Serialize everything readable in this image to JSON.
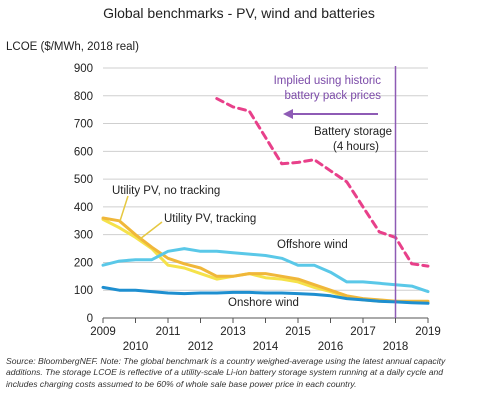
{
  "chart_data": {
    "type": "line",
    "title": "Global benchmarks - PV, wind and batteries",
    "ylabel": "LCOE ($/MWh, 2018 real)",
    "xlabel": "",
    "ylim": [
      0,
      900
    ],
    "xlim": [
      2009,
      2019
    ],
    "yticks": [
      0,
      100,
      200,
      300,
      400,
      500,
      600,
      700,
      800,
      900
    ],
    "xticks_upper": [
      "2009",
      "2011",
      "2013",
      "2015",
      "2017",
      "2019"
    ],
    "xticks_lower": [
      "2010",
      "2012",
      "2014",
      "2016",
      "2018"
    ],
    "grid": true,
    "series": [
      {
        "name": "Battery storage (4 hours)",
        "color": "#e8408a",
        "dash": true,
        "points": [
          [
            2012.5,
            790
          ],
          [
            2013,
            760
          ],
          [
            2013.5,
            745
          ],
          [
            2014,
            650
          ],
          [
            2014.5,
            555
          ],
          [
            2015,
            560
          ],
          [
            2015.5,
            570
          ],
          [
            2016,
            530
          ],
          [
            2016.5,
            490
          ],
          [
            2017,
            400
          ],
          [
            2017.5,
            310
          ],
          [
            2018,
            290
          ],
          [
            2018.5,
            195
          ],
          [
            2019,
            187
          ]
        ]
      },
      {
        "name": "Utility PV, no tracking",
        "color": "#f5e24a",
        "points": [
          [
            2009,
            355
          ],
          [
            2009.5,
            325
          ],
          [
            2010,
            290
          ],
          [
            2010.5,
            250
          ],
          [
            2011,
            190
          ],
          [
            2011.5,
            180
          ],
          [
            2012,
            160
          ],
          [
            2012.5,
            140
          ],
          [
            2013,
            150
          ],
          [
            2013.5,
            160
          ],
          [
            2014,
            145
          ],
          [
            2014.5,
            140
          ],
          [
            2015,
            130
          ],
          [
            2015.5,
            110
          ],
          [
            2016,
            95
          ],
          [
            2016.5,
            75
          ],
          [
            2017,
            65
          ],
          [
            2017.5,
            60
          ],
          [
            2018,
            60
          ],
          [
            2018.5,
            57
          ],
          [
            2019,
            57
          ]
        ]
      },
      {
        "name": "Utility PV, tracking",
        "color": "#f0b73a",
        "points": [
          [
            2009,
            360
          ],
          [
            2009.5,
            350
          ],
          [
            2010,
            300
          ],
          [
            2010.5,
            255
          ],
          [
            2011,
            215
          ],
          [
            2011.5,
            195
          ],
          [
            2012,
            180
          ],
          [
            2012.5,
            150
          ],
          [
            2013,
            150
          ],
          [
            2013.5,
            160
          ],
          [
            2014,
            160
          ],
          [
            2014.5,
            150
          ],
          [
            2015,
            140
          ],
          [
            2015.5,
            120
          ],
          [
            2016,
            100
          ],
          [
            2016.5,
            80
          ],
          [
            2017,
            70
          ],
          [
            2017.5,
            65
          ],
          [
            2018,
            60
          ],
          [
            2018.5,
            60
          ],
          [
            2019,
            60
          ]
        ]
      },
      {
        "name": "Offshore wind",
        "color": "#5ac8e8",
        "points": [
          [
            2009,
            190
          ],
          [
            2009.5,
            205
          ],
          [
            2010,
            210
          ],
          [
            2010.5,
            210
          ],
          [
            2011,
            240
          ],
          [
            2011.5,
            250
          ],
          [
            2012,
            240
          ],
          [
            2012.5,
            240
          ],
          [
            2013,
            235
          ],
          [
            2013.5,
            230
          ],
          [
            2014,
            225
          ],
          [
            2014.5,
            215
          ],
          [
            2015,
            190
          ],
          [
            2015.5,
            190
          ],
          [
            2016,
            165
          ],
          [
            2016.5,
            130
          ],
          [
            2017,
            130
          ],
          [
            2017.5,
            125
          ],
          [
            2018,
            120
          ],
          [
            2018.5,
            115
          ],
          [
            2019,
            95
          ]
        ]
      },
      {
        "name": "Onshore wind",
        "color": "#1e8fd0",
        "points": [
          [
            2009,
            110
          ],
          [
            2009.5,
            100
          ],
          [
            2010,
            100
          ],
          [
            2010.5,
            95
          ],
          [
            2011,
            90
          ],
          [
            2011.5,
            88
          ],
          [
            2012,
            90
          ],
          [
            2012.5,
            90
          ],
          [
            2013,
            92
          ],
          [
            2013.5,
            92
          ],
          [
            2014,
            90
          ],
          [
            2014.5,
            90
          ],
          [
            2015,
            88
          ],
          [
            2015.5,
            85
          ],
          [
            2016,
            80
          ],
          [
            2016.5,
            70
          ],
          [
            2017,
            65
          ],
          [
            2017.5,
            60
          ],
          [
            2018,
            58
          ],
          [
            2018.5,
            55
          ],
          [
            2019,
            53
          ]
        ]
      }
    ],
    "reference_line": {
      "x": 2018,
      "color": "#8e5bb5"
    },
    "annotations": {
      "implied_line1": "Implied using historic",
      "implied_line2": "battery pack prices",
      "battery_line1": "Battery storage",
      "battery_line2": "(4 hours)",
      "pv_no_tracking": "Utility PV, no tracking",
      "pv_tracking": "Utility PV, tracking",
      "offshore": "Offshore wind",
      "onshore": "Onshore wind"
    }
  },
  "source_note": "Source: BloombergNEF. Note: The global benchmark is a country weighed-average using the latest annual capacity additions. The storage LCOE is reflective of a utility-scale Li-ion battery storage system running at a daily cycle and includes charging costs assumed to be 60% of whole sale base power price in each country."
}
